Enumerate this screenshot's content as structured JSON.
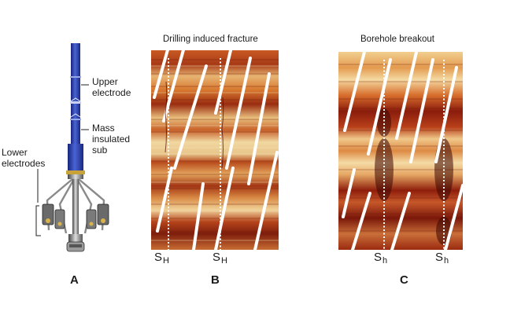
{
  "panel_a": {
    "label_upper": "Upper\nelectrode",
    "label_mass": "Mass\ninsulated\nsub",
    "label_lower": "Lower\nelectrodes",
    "letter": "A"
  },
  "panel_b": {
    "title": "Drilling induced fracture",
    "stress_labels": [
      {
        "main": "S",
        "sub": "H"
      },
      {
        "main": "S",
        "sub": "H"
      }
    ],
    "letter": "B"
  },
  "panel_c": {
    "title": "Borehole breakout",
    "stress_labels": [
      {
        "main": "S",
        "sub": "h"
      },
      {
        "main": "S",
        "sub": "h"
      }
    ],
    "letter": "C"
  },
  "colors": {
    "tool_blue": "#2a3ea8",
    "log_dark": "#7a1a0e",
    "log_light": "#f3d9a4",
    "log_mid": "#d0702f"
  }
}
